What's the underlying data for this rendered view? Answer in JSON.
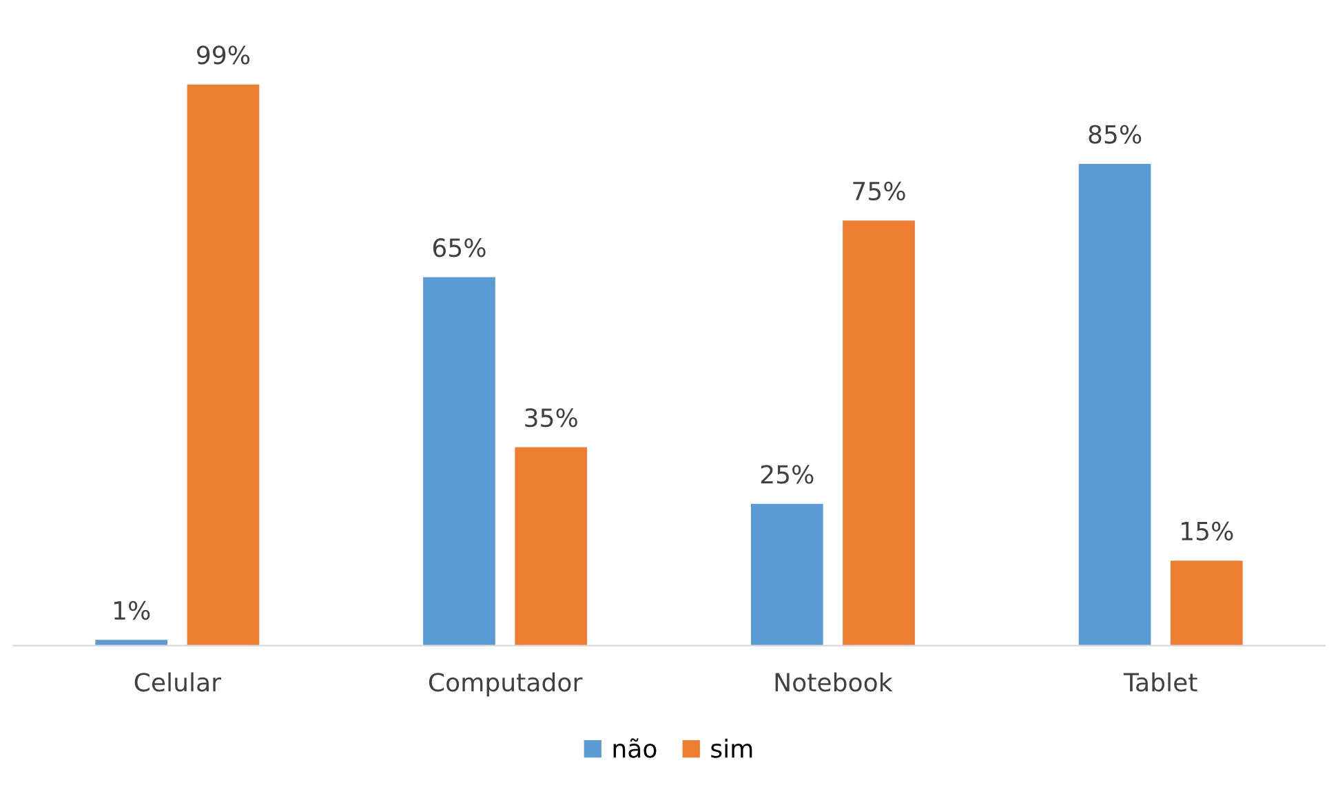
{
  "chart_data": {
    "type": "bar",
    "categories": [
      "Celular",
      "Computador",
      "Notebook",
      "Tablet"
    ],
    "series": [
      {
        "name": "não",
        "color": "#5b9bd5",
        "values": [
          1,
          65,
          25,
          85
        ],
        "value_labels": [
          "1%",
          "65%",
          "25%",
          "85%"
        ]
      },
      {
        "name": "sim",
        "color": "#ed7d31",
        "values": [
          99,
          35,
          75,
          15
        ],
        "value_labels": [
          "99%",
          "35%",
          "75%",
          "15%"
        ]
      }
    ],
    "tick_labels": "x",
    "legend": "bottom",
    "grid": false
  }
}
